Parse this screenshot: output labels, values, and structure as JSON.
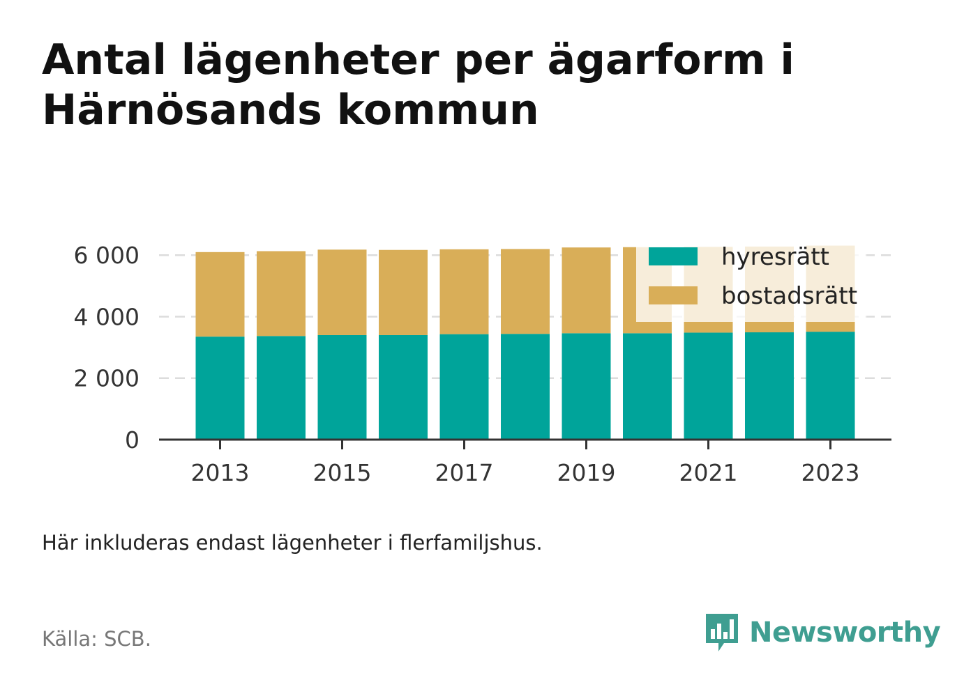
{
  "title": "Antal lägenheter per ägarform i Härnösands kommun",
  "note": "Här inkluderas endast lägenheter i flerfamiljshus.",
  "source": "Källa: SCB.",
  "brand": {
    "name": "Newsworthy",
    "icon": "bar-chart-speech-bubble-icon",
    "color": "#3f9e91"
  },
  "chart_data": {
    "type": "bar",
    "stacked": true,
    "categories": [
      2013,
      2014,
      2015,
      2016,
      2017,
      2018,
      2019,
      2020,
      2021,
      2022,
      2023
    ],
    "x_tick_labels": [
      "2013",
      "2015",
      "2017",
      "2019",
      "2021",
      "2023"
    ],
    "y_ticks": [
      0,
      2000,
      4000,
      6000
    ],
    "y_tick_labels": [
      "0",
      "2 000",
      "4 000",
      "6 000"
    ],
    "ylim": [
      0,
      6300
    ],
    "grid": "horizontal-dashed",
    "legend_position": "top-right",
    "series": [
      {
        "name": "hyresrätt",
        "color": "#00a49a",
        "values": [
          3350,
          3370,
          3400,
          3400,
          3430,
          3440,
          3460,
          3460,
          3480,
          3490,
          3510
        ]
      },
      {
        "name": "bostadsrätt",
        "color": "#d9ae58",
        "values": [
          2750,
          2760,
          2780,
          2770,
          2760,
          2760,
          2790,
          2800,
          2790,
          2790,
          2800
        ]
      }
    ]
  }
}
